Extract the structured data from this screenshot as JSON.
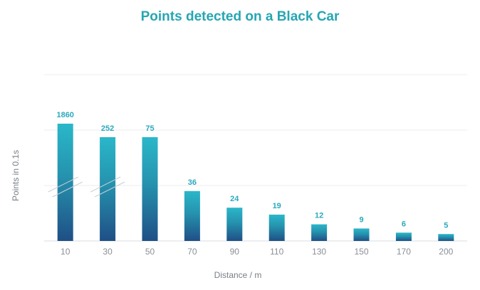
{
  "chart_data": {
    "type": "bar",
    "title": "Points detected on a Black Car",
    "xlabel": "Distance / m",
    "ylabel": "Points in 0.1s",
    "categories": [
      "10",
      "30",
      "50",
      "70",
      "90",
      "110",
      "130",
      "150",
      "170",
      "200"
    ],
    "values": [
      1860,
      252,
      75,
      36,
      24,
      19,
      12,
      9,
      6,
      5
    ],
    "broken_axis_bars": [
      "10",
      "30"
    ],
    "grid": true,
    "legend": "none",
    "colors": {
      "bar_top": "#2ab7c9",
      "bar_bottom": "#1f4f86",
      "label": "#2aa9bd",
      "title": "#26a6b3"
    }
  }
}
